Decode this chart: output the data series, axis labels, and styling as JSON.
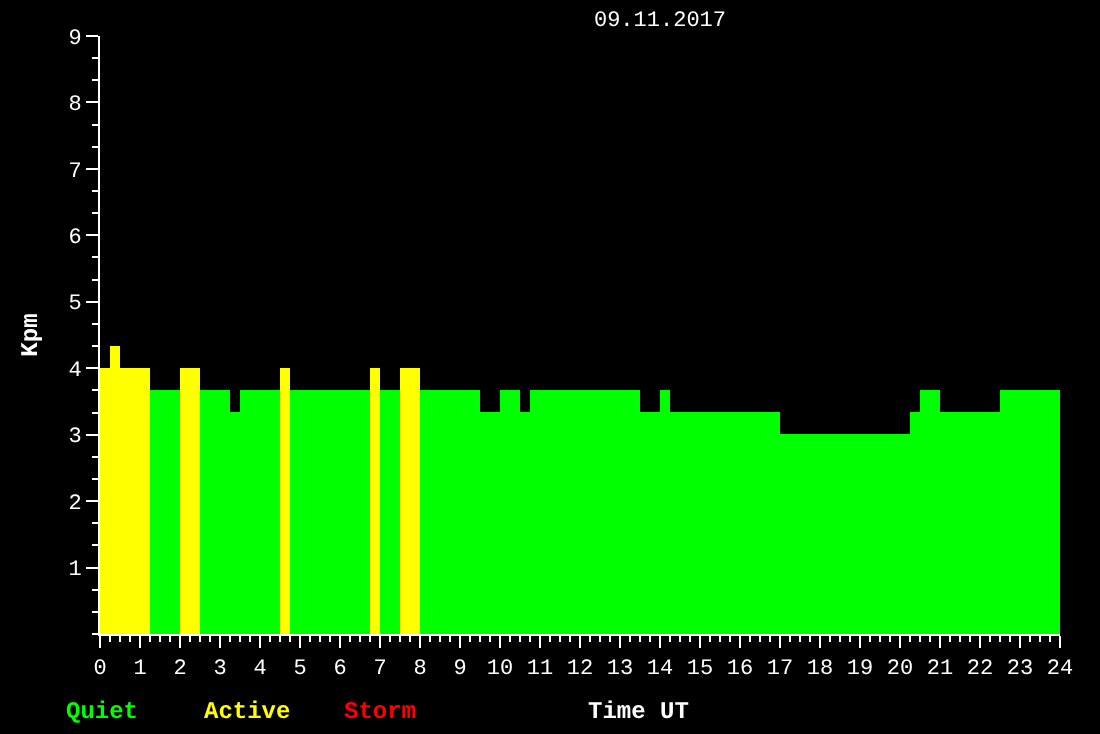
{
  "chart_data": {
    "type": "bar",
    "title": "09.11.2017",
    "xlabel": "Time UT",
    "ylabel": "Kpm",
    "x": [
      0.125,
      0.375,
      0.875,
      1.625,
      2.25,
      2.875,
      3.375,
      4,
      4.625,
      5.75,
      6.875,
      7.25,
      7.75,
      8.75,
      9.75,
      10.25,
      10.625,
      12.125,
      13.75,
      14.125,
      15.625,
      18.625,
      20.375,
      20.75,
      21.75,
      23.25
    ],
    "series": [
      {
        "name": "Quiet",
        "color": "#00ff00",
        "values": [
          null,
          null,
          null,
          3.67,
          null,
          3.67,
          3.33,
          3.67,
          null,
          3.67,
          null,
          3.67,
          null,
          3.67,
          3.33,
          3.67,
          3.33,
          3.67,
          3.33,
          3.67,
          3.33,
          3.0,
          3.33,
          3.67,
          3.33,
          3.67
        ]
      },
      {
        "name": "Active",
        "color": "#ffff00",
        "values": [
          4.0,
          4.33,
          4.0,
          null,
          4.0,
          null,
          null,
          null,
          4.0,
          null,
          4.0,
          null,
          4.0,
          null,
          null,
          null,
          null,
          null,
          null,
          null,
          null,
          null,
          null,
          null,
          null,
          null
        ]
      },
      {
        "name": "Storm",
        "color": "#ff0000",
        "values": [
          null,
          null,
          null,
          null,
          null,
          null,
          null,
          null,
          null,
          null,
          null,
          null,
          null,
          null,
          null,
          null,
          null,
          null,
          null,
          null,
          null,
          null,
          null,
          null,
          null,
          null
        ]
      }
    ],
    "xlim": [
      0,
      24
    ],
    "xticks": [
      0,
      1,
      2,
      3,
      4,
      5,
      6,
      7,
      8,
      9,
      10,
      11,
      12,
      13,
      14,
      15,
      16,
      17,
      18,
      19,
      20,
      21,
      22,
      23,
      24
    ],
    "ylim": [
      0,
      9
    ],
    "yticks": [
      1,
      2,
      3,
      4,
      5,
      6,
      7,
      8,
      9
    ],
    "legend": "bottom left",
    "grid": false
  }
}
